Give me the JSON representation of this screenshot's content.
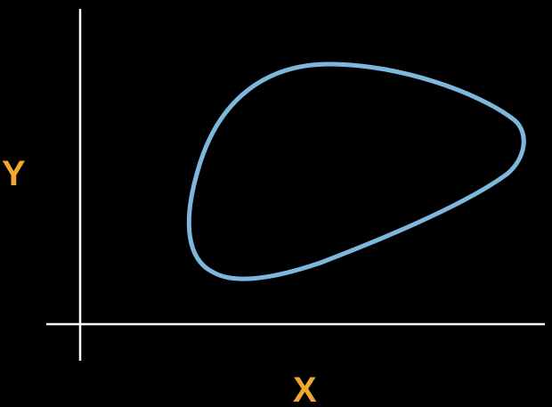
{
  "diagram": {
    "axes": {
      "x_label": "X",
      "y_label": "Y",
      "axis_color": "#ffffff",
      "label_color": "#f0a830"
    },
    "shape": {
      "kind": "closed-curve",
      "stroke_color": "#7db8dc",
      "fill": "none"
    }
  }
}
